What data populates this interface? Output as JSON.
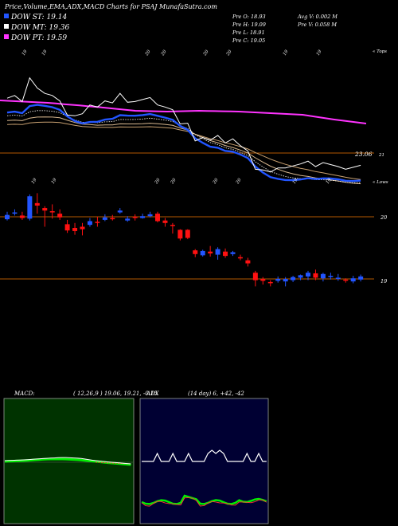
{
  "header": {
    "title": "Price,Volume,EMA,ADX,MACD Charts for PSAJ MunafaSutra.com",
    "legend": [
      {
        "label": "DOW ST: 19.14",
        "color": "#2255ff"
      },
      {
        "label": "DOW MT: 19.36",
        "color": "#ffffff"
      },
      {
        "label": "DOW PT: 19.59",
        "color": "#ff33ff"
      }
    ],
    "ohlc": {
      "prev_o": "Pre   O: 18.93",
      "prev_h": "Pre   H: 19.09",
      "prev_l": "Pre   L: 18.91",
      "prev_c": "Pre   C: 19.05",
      "avg_v": "Avg V: 0.002  M",
      "prev_v": "Pre   V: 0.058  M"
    }
  },
  "colors": {
    "up": "#2255ff",
    "down": "#ff1111",
    "ema_short": "#2255ff",
    "ema_long": "#ff33ff",
    "price_line": "#ffffff",
    "ref_line": "#b35900",
    "macd_bg": "#003300",
    "adx_bg": "#000033"
  },
  "top_panel": {
    "corner_label": "« Tops",
    "level_label": "23.06",
    "level_label2": "21",
    "top_labels": [
      "19",
      "19",
      "20",
      "20",
      "20",
      "20",
      "19",
      "19",
      "19",
      "19"
    ],
    "ribbon_labels": [
      "19",
      "19",
      "20",
      "20",
      "20",
      "20",
      "19",
      "19",
      "19",
      "19"
    ]
  },
  "lower_panel": {
    "corner_label": "« Lows",
    "right_labels": [
      "20",
      "19"
    ]
  },
  "chart_data": {
    "type": "candlestick",
    "title": "Price,Volume,EMA,ADX,MACD Charts for PSAJ MunafaSutra.com",
    "series": [
      {
        "name": "DOW ST",
        "value": 19.14
      },
      {
        "name": "DOW MT",
        "value": 19.36
      },
      {
        "name": "DOW PT",
        "value": 19.59
      }
    ],
    "y_labels": [
      "20",
      "19"
    ],
    "reference_levels": [
      20,
      19
    ],
    "candles": [
      {
        "o": 19.96,
        "c": 20.03,
        "h": 20.08,
        "l": 19.94
      },
      {
        "o": 20.05,
        "c": 20.07,
        "h": 20.12,
        "l": 20.02
      },
      {
        "o": 20.02,
        "c": 19.98,
        "h": 20.08,
        "l": 19.95
      },
      {
        "o": 19.97,
        "c": 20.33,
        "h": 20.36,
        "l": 19.94
      },
      {
        "o": 20.22,
        "c": 20.18,
        "h": 20.38,
        "l": 20.05
      },
      {
        "o": 20.14,
        "c": 20.1,
        "h": 20.17,
        "l": 19.84
      },
      {
        "o": 20.09,
        "c": 20.07,
        "h": 20.2,
        "l": 19.97
      },
      {
        "o": 20.05,
        "c": 19.99,
        "h": 20.12,
        "l": 19.95
      },
      {
        "o": 19.88,
        "c": 19.78,
        "h": 19.95,
        "l": 19.74
      },
      {
        "o": 19.82,
        "c": 19.77,
        "h": 19.9,
        "l": 19.71
      },
      {
        "o": 19.84,
        "c": 19.8,
        "h": 19.9,
        "l": 19.7
      },
      {
        "o": 19.87,
        "c": 19.93,
        "h": 19.98,
        "l": 19.84
      },
      {
        "o": 19.92,
        "c": 19.9,
        "h": 20.0,
        "l": 19.84
      },
      {
        "o": 19.95,
        "c": 19.99,
        "h": 20.04,
        "l": 19.93
      },
      {
        "o": 19.98,
        "c": 19.96,
        "h": 20.03,
        "l": 19.94
      },
      {
        "o": 20.07,
        "c": 20.1,
        "h": 20.14,
        "l": 20.05
      },
      {
        "o": 19.94,
        "c": 19.97,
        "h": 20.01,
        "l": 19.92
      },
      {
        "o": 20.0,
        "c": 19.98,
        "h": 20.04,
        "l": 19.94
      },
      {
        "o": 19.98,
        "c": 20.01,
        "h": 20.05,
        "l": 19.97
      },
      {
        "o": 20.01,
        "c": 20.04,
        "h": 20.08,
        "l": 19.99
      },
      {
        "o": 20.05,
        "c": 19.93,
        "h": 20.08,
        "l": 19.91
      },
      {
        "o": 19.94,
        "c": 19.9,
        "h": 19.98,
        "l": 19.84
      },
      {
        "o": 19.87,
        "c": 19.86,
        "h": 19.9,
        "l": 19.73
      },
      {
        "o": 19.79,
        "c": 19.65,
        "h": 19.8,
        "l": 19.62
      },
      {
        "o": 19.79,
        "c": 19.66,
        "h": 19.8,
        "l": 19.64
      },
      {
        "o": 19.46,
        "c": 19.4,
        "h": 19.48,
        "l": 19.35
      },
      {
        "o": 19.38,
        "c": 19.45,
        "h": 19.47,
        "l": 19.36
      },
      {
        "o": 19.44,
        "c": 19.41,
        "h": 19.53,
        "l": 19.36
      },
      {
        "o": 19.39,
        "c": 19.48,
        "h": 19.51,
        "l": 19.31
      },
      {
        "o": 19.44,
        "c": 19.37,
        "h": 19.49,
        "l": 19.34
      },
      {
        "o": 19.4,
        "c": 19.43,
        "h": 19.45,
        "l": 19.37
      },
      {
        "o": 19.35,
        "c": 19.33,
        "h": 19.39,
        "l": 19.3
      },
      {
        "o": 19.3,
        "c": 19.25,
        "h": 19.34,
        "l": 19.2
      },
      {
        "o": 19.1,
        "c": 18.98,
        "h": 19.13,
        "l": 18.88
      },
      {
        "o": 19.0,
        "c": 18.97,
        "h": 19.03,
        "l": 18.91
      },
      {
        "o": 18.95,
        "c": 18.94,
        "h": 18.98,
        "l": 18.88
      },
      {
        "o": 18.97,
        "c": 19.0,
        "h": 19.04,
        "l": 18.94
      },
      {
        "o": 18.96,
        "c": 19.0,
        "h": 19.03,
        "l": 18.88
      },
      {
        "o": 18.98,
        "c": 19.03,
        "h": 19.05,
        "l": 18.95
      },
      {
        "o": 19.02,
        "c": 19.06,
        "h": 19.07,
        "l": 18.98
      },
      {
        "o": 19.04,
        "c": 19.1,
        "h": 19.13,
        "l": 18.98
      },
      {
        "o": 19.09,
        "c": 19.02,
        "h": 19.15,
        "l": 18.98
      },
      {
        "o": 19.01,
        "c": 19.08,
        "h": 19.1,
        "l": 18.96
      },
      {
        "o": 19.03,
        "c": 19.05,
        "h": 19.1,
        "l": 18.99
      },
      {
        "o": 19.0,
        "c": 19.02,
        "h": 19.08,
        "l": 18.97
      },
      {
        "o": 18.99,
        "c": 18.98,
        "h": 19.01,
        "l": 18.94
      },
      {
        "o": 18.96,
        "c": 19.01,
        "h": 19.05,
        "l": 18.93
      },
      {
        "o": 18.99,
        "c": 19.04,
        "h": 19.07,
        "l": 18.96
      }
    ]
  },
  "macd": {
    "label": "MACD:",
    "params": "( 12,26,9 ) 19.06,  19.21,  -0.15"
  },
  "adx": {
    "label": "ADX",
    "params": "(14  day) 6,  +42,  -42"
  }
}
